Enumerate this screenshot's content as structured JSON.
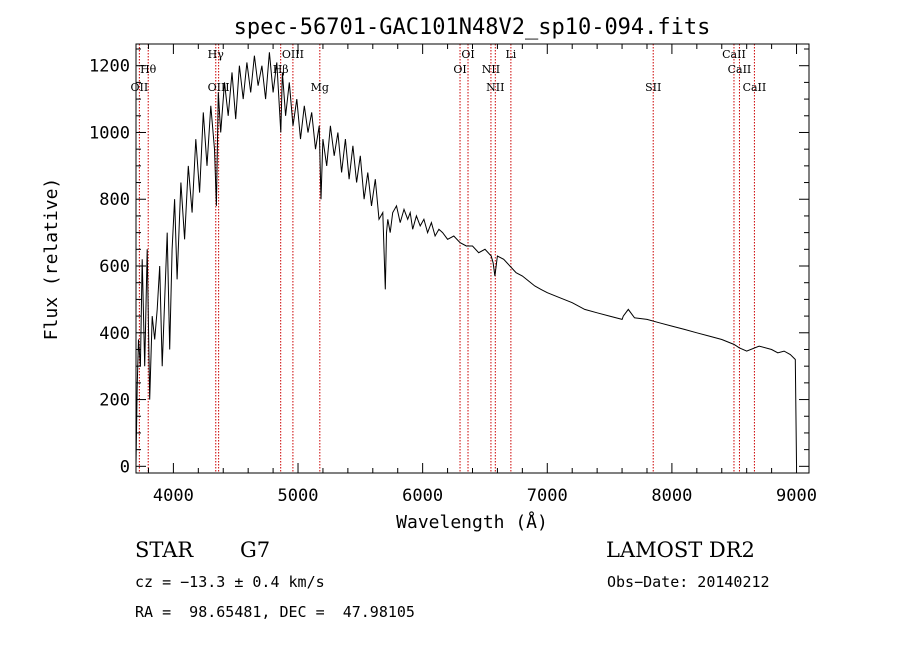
{
  "chart_data": {
    "type": "line",
    "title": "spec-56701-GAC101N48V2_sp10-094.fits",
    "xlabel": "Wavelength (Å)",
    "ylabel": "Flux (relative)",
    "xlim": [
      3700,
      9100
    ],
    "ylim": [
      -20,
      1265
    ],
    "xticks": [
      "4000",
      "5000",
      "6000",
      "7000",
      "8000",
      "9000"
    ],
    "yticks": [
      "0",
      "200",
      "400",
      "600",
      "800",
      "1000",
      "1200"
    ],
    "xtick_values": [
      4000,
      5000,
      6000,
      7000,
      8000,
      9000
    ],
    "ytick_values": [
      0,
      200,
      400,
      600,
      800,
      1000,
      1200
    ],
    "grid": false,
    "series": [
      {
        "x": [
          3700,
          3710,
          3720,
          3735,
          3750,
          3770,
          3790,
          3810,
          3830,
          3850,
          3870,
          3890,
          3910,
          3930,
          3950,
          3970,
          3990,
          4010,
          4030,
          4060,
          4090,
          4120,
          4150,
          4180,
          4210,
          4240,
          4270,
          4300,
          4330,
          4345,
          4360,
          4380,
          4410,
          4440,
          4470,
          4500,
          4530,
          4560,
          4590,
          4620,
          4650,
          4680,
          4710,
          4740,
          4770,
          4800,
          4830,
          4850,
          4862,
          4875,
          4900,
          4930,
          4960,
          4990,
          5020,
          5050,
          5080,
          5110,
          5140,
          5170,
          5184,
          5200,
          5230,
          5260,
          5290,
          5320,
          5350,
          5380,
          5410,
          5440,
          5470,
          5500,
          5530,
          5560,
          5590,
          5620,
          5650,
          5680,
          5700,
          5710,
          5720,
          5740,
          5760,
          5790,
          5820,
          5850,
          5880,
          5900,
          5920,
          5950,
          5980,
          6010,
          6040,
          6070,
          6100,
          6130,
          6160,
          6200,
          6250,
          6300,
          6350,
          6400,
          6450,
          6500,
          6550,
          6565,
          6580,
          6600,
          6650,
          6700,
          6750,
          6800,
          6850,
          6900,
          6950,
          7000,
          7100,
          7200,
          7300,
          7400,
          7500,
          7600,
          7610,
          7650,
          7700,
          7800,
          7900,
          8000,
          8100,
          8200,
          8300,
          8400,
          8500,
          8540,
          8600,
          8700,
          8800,
          8850,
          8900,
          8950,
          8990,
          9000
        ],
        "values": [
          5,
          240,
          380,
          300,
          620,
          300,
          650,
          200,
          450,
          380,
          470,
          600,
          300,
          500,
          700,
          350,
          650,
          800,
          560,
          850,
          680,
          900,
          760,
          980,
          820,
          1060,
          900,
          1080,
          950,
          780,
          1120,
          1000,
          1150,
          1050,
          1180,
          1040,
          1200,
          1100,
          1210,
          1120,
          1230,
          1140,
          1200,
          1100,
          1240,
          1120,
          1210,
          1080,
          1000,
          1180,
          1050,
          1150,
          1020,
          1100,
          980,
          1080,
          1000,
          1060,
          950,
          1020,
          800,
          980,
          900,
          1020,
          930,
          1000,
          880,
          980,
          860,
          960,
          850,
          930,
          800,
          880,
          780,
          860,
          740,
          760,
          530,
          700,
          740,
          700,
          760,
          780,
          730,
          770,
          740,
          760,
          710,
          750,
          720,
          740,
          700,
          730,
          690,
          710,
          700,
          680,
          690,
          670,
          660,
          660,
          640,
          650,
          630,
          610,
          570,
          630,
          620,
          600,
          580,
          570,
          555,
          540,
          530,
          520,
          505,
          490,
          470,
          460,
          450,
          440,
          450,
          470,
          445,
          440,
          430,
          420,
          410,
          400,
          390,
          380,
          365,
          355,
          345,
          360,
          350,
          340,
          345,
          335,
          320,
          10
        ]
      }
    ],
    "lines": [
      {
        "label": "OII",
        "x": 3727
      },
      {
        "label": "Hθ",
        "x": 3798
      },
      {
        "label": "Hγ",
        "x": 4340
      },
      {
        "label": "OIII",
        "x": 4363
      },
      {
        "label": "Hβ",
        "x": 4861
      },
      {
        "label": "OIII",
        "x": 4959
      },
      {
        "label": "Mg",
        "x": 5175
      },
      {
        "label": "OI",
        "x": 6300
      },
      {
        "label": "OI",
        "x": 6364
      },
      {
        "label": "NII",
        "x": 6548
      },
      {
        "label": "NII",
        "x": 6583
      },
      {
        "label": "Li",
        "x": 6708
      },
      {
        "label": "SII",
        "x": 7850
      },
      {
        "label": "CaII",
        "x": 8498
      },
      {
        "label": "CaII",
        "x": 8542
      },
      {
        "label": "CaII",
        "x": 8662
      }
    ]
  },
  "footer": {
    "object_class": "STAR",
    "subclass": "G7",
    "survey": "LAMOST DR2",
    "cz": "cz = −13.3 ± 0.4 km/s",
    "obs_date": "Obs−Date: 20140212",
    "coords": "RA =  98.65481, DEC =  47.98105"
  },
  "colors": {
    "spectrum": "#000000",
    "line_markers": "#cc0000"
  }
}
